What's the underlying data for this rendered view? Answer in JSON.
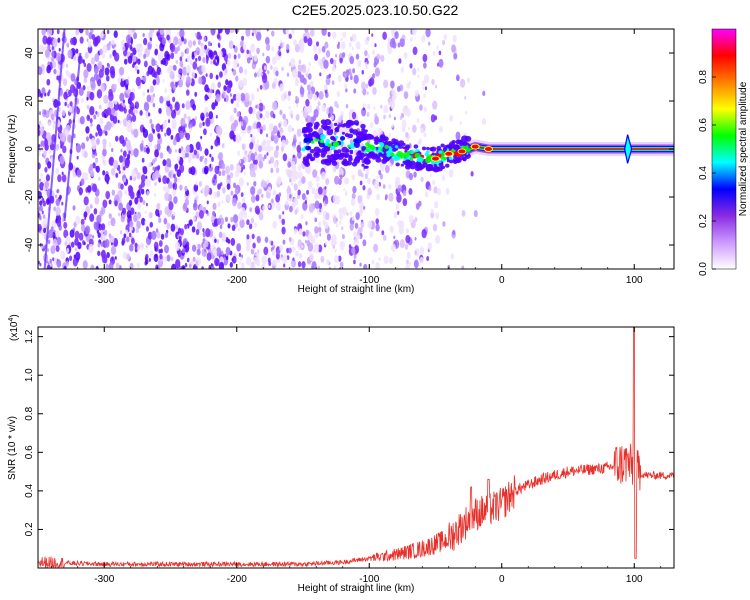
{
  "title": "C2E5.2025.023.10.50.G22",
  "chart_data": [
    {
      "type": "heatmap",
      "xlabel": "Height of straight line (km)",
      "ylabel": "Frequency (Hz)",
      "xlim": [
        -350,
        130
      ],
      "ylim": [
        -50,
        50
      ],
      "xticks": [
        -300,
        -200,
        -100,
        0,
        100
      ],
      "xtick_labels": [
        "-300",
        "-200",
        "-100",
        "0",
        "100"
      ],
      "yticks": [
        -40,
        -20,
        0,
        20,
        40
      ],
      "ytick_labels": [
        "-40",
        "-20",
        "0",
        "20",
        "40"
      ],
      "colorbar": {
        "label": "Normalized spectral amplitude",
        "range": [
          0,
          1
        ],
        "ticks": [
          0.0,
          0.2,
          0.4,
          0.6,
          0.8
        ],
        "tick_labels": [
          "0.0",
          "0.2",
          "0.4",
          "0.6",
          "0.8"
        ],
        "colors": [
          "#ffffff",
          "#cc99ff",
          "#8a2be2",
          "#0000ff",
          "#00ffff",
          "#00ff00",
          "#ffff00",
          "#ff8000",
          "#ff0000",
          "#ff00ff"
        ]
      },
      "ridge": {
        "x": [
          -150,
          -130,
          -110,
          -90,
          -70,
          -50,
          -40,
          -30,
          -20,
          -10,
          0,
          20,
          50,
          80,
          95,
          100,
          130
        ],
        "y": [
          2,
          3,
          2,
          0,
          -3,
          -4,
          -2,
          -1,
          1,
          0,
          0,
          0,
          0,
          0,
          0,
          0,
          0
        ]
      },
      "noise_extent_x": [
        -350,
        -60
      ]
    },
    {
      "type": "line",
      "xlabel": "Height of straight line (km)",
      "ylabel": "SNR (10 * v/v)",
      "scale_note": "(x10",
      "scale_exp": "4",
      "ylabel_unit": ")",
      "xlim": [
        -350,
        130
      ],
      "ylim": [
        0,
        1.25
      ],
      "xticks": [
        -300,
        -200,
        -100,
        0,
        100
      ],
      "xtick_labels": [
        "-300",
        "-200",
        "-100",
        "0",
        "100"
      ],
      "yticks": [
        0.2,
        0.4,
        0.6,
        0.8,
        1.0,
        1.2
      ],
      "ytick_labels": [
        "0.2",
        "0.4",
        "0.6",
        "0.8",
        "1.0",
        "1.2"
      ],
      "color": "#e8302a",
      "envelope": {
        "x": [
          -350,
          -300,
          -200,
          -150,
          -120,
          -100,
          -80,
          -60,
          -40,
          -30,
          -20,
          -10,
          0,
          10,
          30,
          50,
          80,
          90,
          95,
          100,
          105,
          110,
          130
        ],
        "y": [
          0.03,
          0.02,
          0.02,
          0.02,
          0.03,
          0.05,
          0.07,
          0.1,
          0.15,
          0.22,
          0.28,
          0.3,
          0.33,
          0.4,
          0.46,
          0.5,
          0.52,
          0.54,
          0.55,
          0.5,
          0.49,
          0.48,
          0.48
        ]
      },
      "peaks": [
        {
          "x": -23,
          "y": 0.42
        },
        {
          "x": -10,
          "y": 0.46
        },
        {
          "x": 100,
          "y": 1.25
        },
        {
          "x": 101,
          "y": 0.05
        }
      ]
    }
  ]
}
